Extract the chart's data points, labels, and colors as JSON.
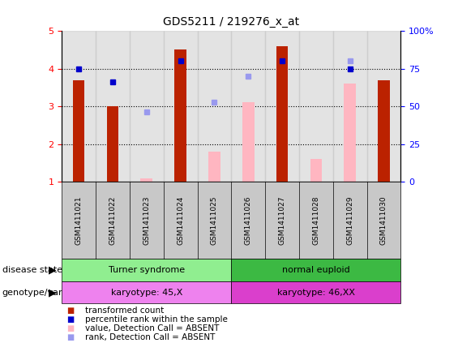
{
  "title": "GDS5211 / 219276_x_at",
  "samples": [
    "GSM1411021",
    "GSM1411022",
    "GSM1411023",
    "GSM1411024",
    "GSM1411025",
    "GSM1411026",
    "GSM1411027",
    "GSM1411028",
    "GSM1411029",
    "GSM1411030"
  ],
  "transformed_count": [
    3.7,
    3.0,
    null,
    4.5,
    null,
    null,
    4.6,
    null,
    null,
    3.7
  ],
  "percentile_rank": [
    4.0,
    3.65,
    null,
    4.2,
    null,
    null,
    4.2,
    null,
    4.0,
    null
  ],
  "absent_value": [
    null,
    null,
    1.1,
    null,
    1.8,
    3.1,
    null,
    1.6,
    3.6,
    null
  ],
  "absent_rank": [
    null,
    null,
    2.85,
    null,
    3.1,
    3.8,
    null,
    null,
    4.2,
    null
  ],
  "disease_state_groups": [
    {
      "label": "Turner syndrome",
      "start": 0,
      "end": 5,
      "color": "#90EE90"
    },
    {
      "label": "normal euploid",
      "start": 5,
      "end": 10,
      "color": "#3CB943"
    }
  ],
  "genotype_groups": [
    {
      "label": "karyotype: 45,X",
      "start": 0,
      "end": 5,
      "color": "#EE82EE"
    },
    {
      "label": "karyotype: 46,XX",
      "start": 5,
      "end": 10,
      "color": "#DA3FCC"
    }
  ],
  "ylim": [
    1,
    5
  ],
  "yticks": [
    1,
    2,
    3,
    4,
    5
  ],
  "ytick_labels_left": [
    "1",
    "2",
    "3",
    "4",
    "5"
  ],
  "ytick_labels_right": [
    "0",
    "25",
    "50",
    "75",
    "100%"
  ],
  "bar_color_red": "#BB2200",
  "bar_color_pink": "#FFB6C1",
  "dot_color_blue": "#0000CC",
  "dot_color_lightblue": "#9999EE",
  "col_bg_color": "#C8C8C8",
  "bg_color": "#FFFFFF",
  "bar_width": 0.35,
  "legend_items": [
    {
      "color": "#BB2200",
      "label": "transformed count"
    },
    {
      "color": "#0000CC",
      "label": "percentile rank within the sample"
    },
    {
      "color": "#FFB6C1",
      "label": "value, Detection Call = ABSENT"
    },
    {
      "color": "#9999EE",
      "label": "rank, Detection Call = ABSENT"
    }
  ]
}
